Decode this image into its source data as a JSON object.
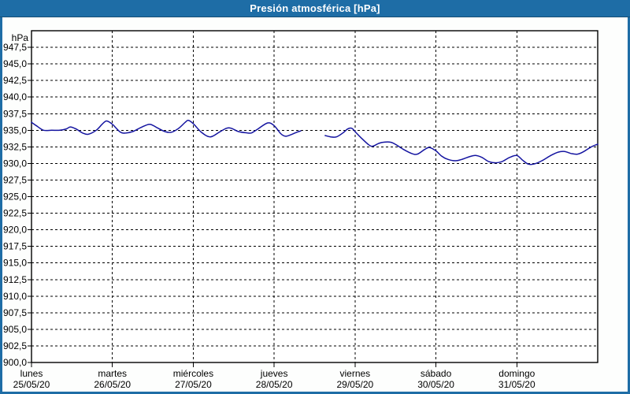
{
  "window": {
    "title": "Presión atmosférica [hPa]"
  },
  "colors": {
    "frame": "#1E6DA6",
    "titlebar_bg": "#1E6DA6",
    "titlebar_text": "#FFFFFF",
    "background": "#FDFEFD",
    "plot_bg": "#FFFFFF",
    "plot_border": "#000000",
    "grid": "#000000",
    "axis_text": "#000000",
    "line": "#1414A0"
  },
  "chart_data": {
    "type": "line",
    "title": "Presión atmosférica [hPa]",
    "grid": "dashed",
    "y_axis": {
      "unit": "hPa",
      "min": 900,
      "max": 950,
      "tick_step": 2.5,
      "ticks": [
        {
          "value": 947.5,
          "label": "947,5"
        },
        {
          "value": 945.0,
          "label": "945,0"
        },
        {
          "value": 942.5,
          "label": "942,5"
        },
        {
          "value": 940.0,
          "label": "940,0"
        },
        {
          "value": 937.5,
          "label": "937,5"
        },
        {
          "value": 935.0,
          "label": "935,0"
        },
        {
          "value": 932.5,
          "label": "932,5"
        },
        {
          "value": 930.0,
          "label": "930,0"
        },
        {
          "value": 927.5,
          "label": "927,5"
        },
        {
          "value": 925.0,
          "label": "925,0"
        },
        {
          "value": 922.5,
          "label": "922,5"
        },
        {
          "value": 920.0,
          "label": "920,0"
        },
        {
          "value": 917.5,
          "label": "917,5"
        },
        {
          "value": 915.0,
          "label": "915,0"
        },
        {
          "value": 912.5,
          "label": "912,5"
        },
        {
          "value": 910.0,
          "label": "910,0"
        },
        {
          "value": 907.5,
          "label": "907,5"
        },
        {
          "value": 905.0,
          "label": "905,0"
        },
        {
          "value": 902.5,
          "label": "902,5"
        },
        {
          "value": 900.0,
          "label": "900,0"
        }
      ]
    },
    "x_axis": {
      "span_days": 7,
      "days": [
        {
          "weekday": "lunes",
          "date": "25/05/20"
        },
        {
          "weekday": "martes",
          "date": "26/05/20"
        },
        {
          "weekday": "miércoles",
          "date": "27/05/20"
        },
        {
          "weekday": "jueves",
          "date": "28/05/20"
        },
        {
          "weekday": "viernes",
          "date": "29/05/20"
        },
        {
          "weekday": "sábado",
          "date": "30/05/20"
        },
        {
          "weekday": "domingo",
          "date": "31/05/20"
        }
      ]
    },
    "series": [
      {
        "name": "Presión atmosférica",
        "unit": "hPa",
        "color": "#1414A0",
        "segments": [
          [
            [
              0.0,
              936.2
            ],
            [
              0.07,
              935.6
            ],
            [
              0.15,
              935.0
            ],
            [
              0.25,
              935.0
            ],
            [
              0.35,
              935.0
            ],
            [
              0.43,
              935.2
            ],
            [
              0.48,
              935.5
            ],
            [
              0.55,
              935.2
            ],
            [
              0.63,
              934.6
            ],
            [
              0.7,
              934.4
            ],
            [
              0.8,
              935.0
            ],
            [
              0.88,
              936.0
            ],
            [
              0.93,
              936.4
            ],
            [
              1.0,
              935.9
            ],
            [
              1.1,
              934.7
            ],
            [
              1.17,
              934.6
            ],
            [
              1.25,
              934.8
            ],
            [
              1.35,
              935.4
            ],
            [
              1.46,
              935.9
            ],
            [
              1.55,
              935.4
            ],
            [
              1.65,
              934.8
            ],
            [
              1.73,
              934.7
            ],
            [
              1.82,
              935.3
            ],
            [
              1.9,
              936.2
            ],
            [
              1.94,
              936.5
            ],
            [
              2.0,
              936.0
            ],
            [
              2.1,
              934.7
            ],
            [
              2.21,
              934.0
            ],
            [
              2.32,
              934.7
            ],
            [
              2.41,
              935.3
            ],
            [
              2.47,
              935.3
            ],
            [
              2.56,
              934.8
            ],
            [
              2.67,
              934.6
            ],
            [
              2.72,
              934.6
            ],
            [
              2.8,
              935.2
            ],
            [
              2.92,
              936.1
            ],
            [
              3.0,
              935.7
            ],
            [
              3.08,
              934.5
            ],
            [
              3.14,
              934.1
            ],
            [
              3.22,
              934.4
            ],
            [
              3.28,
              934.7
            ],
            [
              3.33,
              934.9
            ]
          ],
          [
            [
              3.63,
              934.2
            ],
            [
              3.7,
              934.0
            ],
            [
              3.77,
              934.0
            ],
            [
              3.85,
              934.6
            ],
            [
              3.91,
              935.2
            ],
            [
              3.96,
              935.3
            ],
            [
              4.0,
              934.8
            ],
            [
              4.08,
              933.8
            ],
            [
              4.17,
              932.8
            ],
            [
              4.22,
              932.6
            ],
            [
              4.29,
              933.0
            ],
            [
              4.35,
              933.2
            ],
            [
              4.44,
              933.2
            ],
            [
              4.51,
              932.8
            ],
            [
              4.6,
              932.1
            ],
            [
              4.7,
              931.5
            ],
            [
              4.77,
              931.4
            ],
            [
              4.86,
              932.1
            ],
            [
              4.92,
              932.4
            ],
            [
              5.0,
              931.9
            ],
            [
              5.07,
              931.1
            ],
            [
              5.15,
              930.6
            ],
            [
              5.24,
              930.4
            ],
            [
              5.32,
              930.6
            ],
            [
              5.41,
              931.0
            ],
            [
              5.49,
              931.2
            ],
            [
              5.57,
              930.9
            ],
            [
              5.65,
              930.3
            ],
            [
              5.74,
              930.1
            ],
            [
              5.82,
              930.3
            ],
            [
              5.91,
              930.9
            ],
            [
              6.0,
              931.2
            ],
            [
              6.07,
              930.5
            ],
            [
              6.14,
              929.9
            ],
            [
              6.21,
              929.9
            ],
            [
              6.31,
              930.4
            ],
            [
              6.42,
              931.2
            ],
            [
              6.51,
              931.7
            ],
            [
              6.59,
              931.8
            ],
            [
              6.67,
              931.5
            ],
            [
              6.75,
              931.4
            ],
            [
              6.83,
              931.8
            ],
            [
              6.92,
              932.5
            ],
            [
              7.0,
              932.9
            ]
          ]
        ]
      }
    ]
  }
}
